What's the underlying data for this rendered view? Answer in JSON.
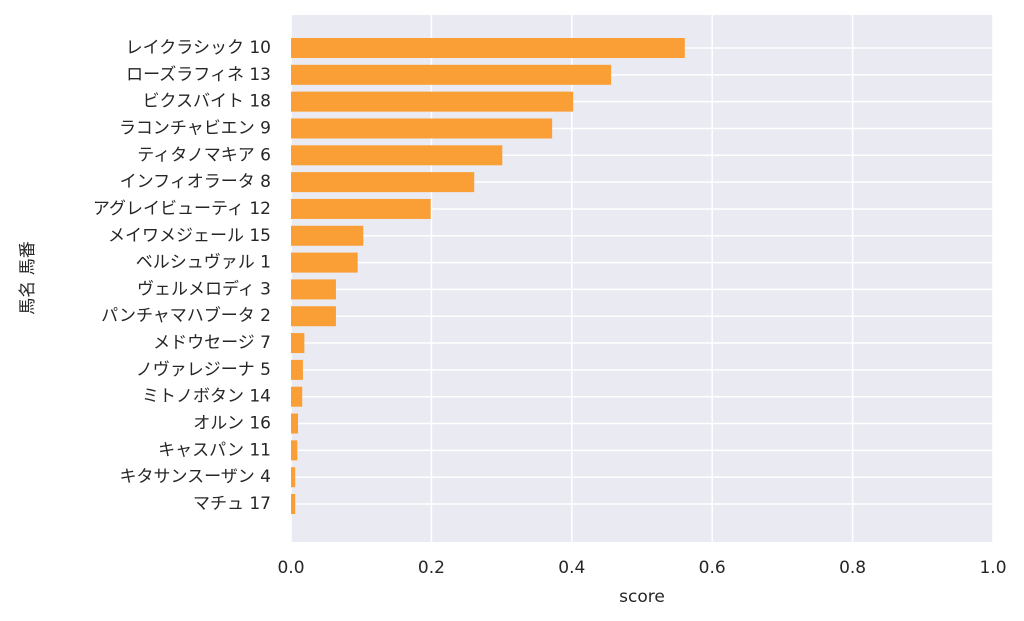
{
  "chart_data": {
    "type": "barh",
    "categories": [
      "レイクラシック 10",
      "ローズラフィネ 13",
      "ビクスバイト 18",
      "ラコンチャビエン 9",
      "ティタノマキア 6",
      "インフィオラータ 8",
      "アグレイビューティ 12",
      "メイワメジェール 15",
      "ベルシュヴァル 1",
      "ヴェルメロディ 3",
      "パンチャマハブータ 2",
      "メドウセージ 7",
      "ノヴァレジーナ 5",
      "ミトノボタン 14",
      "オルン 16",
      "キャスパン 11",
      "キタサンスーザン 4",
      "マチュ 17"
    ],
    "values": [
      0.561,
      0.456,
      0.402,
      0.372,
      0.301,
      0.261,
      0.199,
      0.103,
      0.095,
      0.064,
      0.064,
      0.019,
      0.017,
      0.016,
      0.01,
      0.009,
      0.006,
      0.006
    ],
    "color": "#fa9f36",
    "xlabel": "score",
    "ylabel": "馬名 馬番",
    "xlim": [
      0,
      1
    ],
    "xticks": [
      {
        "value": 0,
        "label": "0.0"
      },
      0.2,
      0.4,
      0.6,
      0.8,
      {
        "value": 1,
        "label": "1.0"
      }
    ],
    "grid": true
  }
}
